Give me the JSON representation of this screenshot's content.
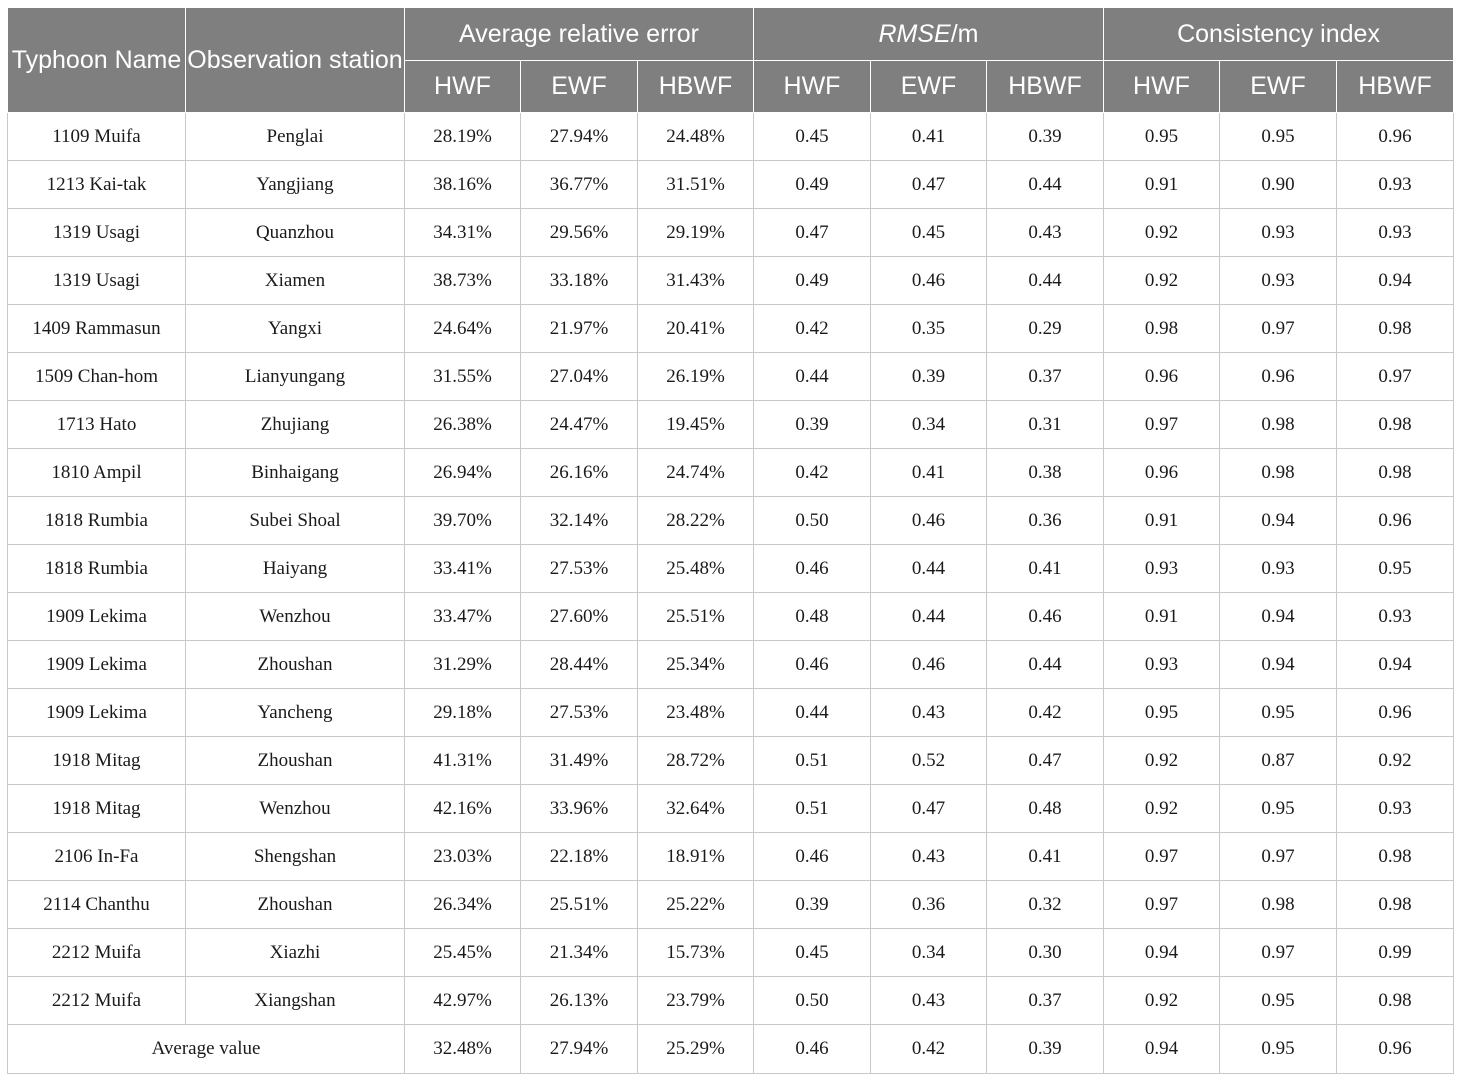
{
  "header": {
    "typhoon_name": "Typhoon Name",
    "observation_station": "Observation station",
    "group_avg_rel_error": "Average relative error",
    "group_rmse_italic": "RMSE",
    "group_rmse_unit": "/m",
    "group_consistency": "Consistency index",
    "sub": [
      "HWF",
      "EWF",
      "HBWF",
      "HWF",
      "EWF",
      "HBWF",
      "HWF",
      "EWF",
      "HBWF"
    ]
  },
  "rows": [
    [
      "1109 Muifa",
      "Penglai",
      "28.19%",
      "27.94%",
      "24.48%",
      "0.45",
      "0.41",
      "0.39",
      "0.95",
      "0.95",
      "0.96"
    ],
    [
      "1213 Kai-tak",
      "Yangjiang",
      "38.16%",
      "36.77%",
      "31.51%",
      "0.49",
      "0.47",
      "0.44",
      "0.91",
      "0.90",
      "0.93"
    ],
    [
      "1319 Usagi",
      "Quanzhou",
      "34.31%",
      "29.56%",
      "29.19%",
      "0.47",
      "0.45",
      "0.43",
      "0.92",
      "0.93",
      "0.93"
    ],
    [
      "1319 Usagi",
      "Xiamen",
      "38.73%",
      "33.18%",
      "31.43%",
      "0.49",
      "0.46",
      "0.44",
      "0.92",
      "0.93",
      "0.94"
    ],
    [
      "1409 Rammasun",
      "Yangxi",
      "24.64%",
      "21.97%",
      "20.41%",
      "0.42",
      "0.35",
      "0.29",
      "0.98",
      "0.97",
      "0.98"
    ],
    [
      "1509 Chan-hom",
      "Lianyungang",
      "31.55%",
      "27.04%",
      "26.19%",
      "0.44",
      "0.39",
      "0.37",
      "0.96",
      "0.96",
      "0.97"
    ],
    [
      "1713 Hato",
      "Zhujiang",
      "26.38%",
      "24.47%",
      "19.45%",
      "0.39",
      "0.34",
      "0.31",
      "0.97",
      "0.98",
      "0.98"
    ],
    [
      "1810 Ampil",
      "Binhaigang",
      "26.94%",
      "26.16%",
      "24.74%",
      "0.42",
      "0.41",
      "0.38",
      "0.96",
      "0.98",
      "0.98"
    ],
    [
      "1818 Rumbia",
      "Subei Shoal",
      "39.70%",
      "32.14%",
      "28.22%",
      "0.50",
      "0.46",
      "0.36",
      "0.91",
      "0.94",
      "0.96"
    ],
    [
      "1818 Rumbia",
      "Haiyang",
      "33.41%",
      "27.53%",
      "25.48%",
      "0.46",
      "0.44",
      "0.41",
      "0.93",
      "0.93",
      "0.95"
    ],
    [
      "1909 Lekima",
      "Wenzhou",
      "33.47%",
      "27.60%",
      "25.51%",
      "0.48",
      "0.44",
      "0.46",
      "0.91",
      "0.94",
      "0.93"
    ],
    [
      "1909 Lekima",
      "Zhoushan",
      "31.29%",
      "28.44%",
      "25.34%",
      "0.46",
      "0.46",
      "0.44",
      "0.93",
      "0.94",
      "0.94"
    ],
    [
      "1909 Lekima",
      "Yancheng",
      "29.18%",
      "27.53%",
      "23.48%",
      "0.44",
      "0.43",
      "0.42",
      "0.95",
      "0.95",
      "0.96"
    ],
    [
      "1918 Mitag",
      "Zhoushan",
      "41.31%",
      "31.49%",
      "28.72%",
      "0.51",
      "0.52",
      "0.47",
      "0.92",
      "0.87",
      "0.92"
    ],
    [
      "1918 Mitag",
      "Wenzhou",
      "42.16%",
      "33.96%",
      "32.64%",
      "0.51",
      "0.47",
      "0.48",
      "0.92",
      "0.95",
      "0.93"
    ],
    [
      "2106 In-Fa",
      "Shengshan",
      "23.03%",
      "22.18%",
      "18.91%",
      "0.46",
      "0.43",
      "0.41",
      "0.97",
      "0.97",
      "0.98"
    ],
    [
      "2114 Chanthu",
      "Zhoushan",
      "26.34%",
      "25.51%",
      "25.22%",
      "0.39",
      "0.36",
      "0.32",
      "0.97",
      "0.98",
      "0.98"
    ],
    [
      "2212 Muifa",
      "Xiazhi",
      "25.45%",
      "21.34%",
      "15.73%",
      "0.45",
      "0.34",
      "0.30",
      "0.94",
      "0.97",
      "0.99"
    ],
    [
      "2212 Muifa",
      "Xiangshan",
      "42.97%",
      "26.13%",
      "23.79%",
      "0.50",
      "0.43",
      "0.37",
      "0.92",
      "0.95",
      "0.98"
    ]
  ],
  "average_row": {
    "label": "Average value",
    "values": [
      "32.48%",
      "27.94%",
      "25.29%",
      "0.46",
      "0.42",
      "0.39",
      "0.94",
      "0.95",
      "0.96"
    ]
  }
}
